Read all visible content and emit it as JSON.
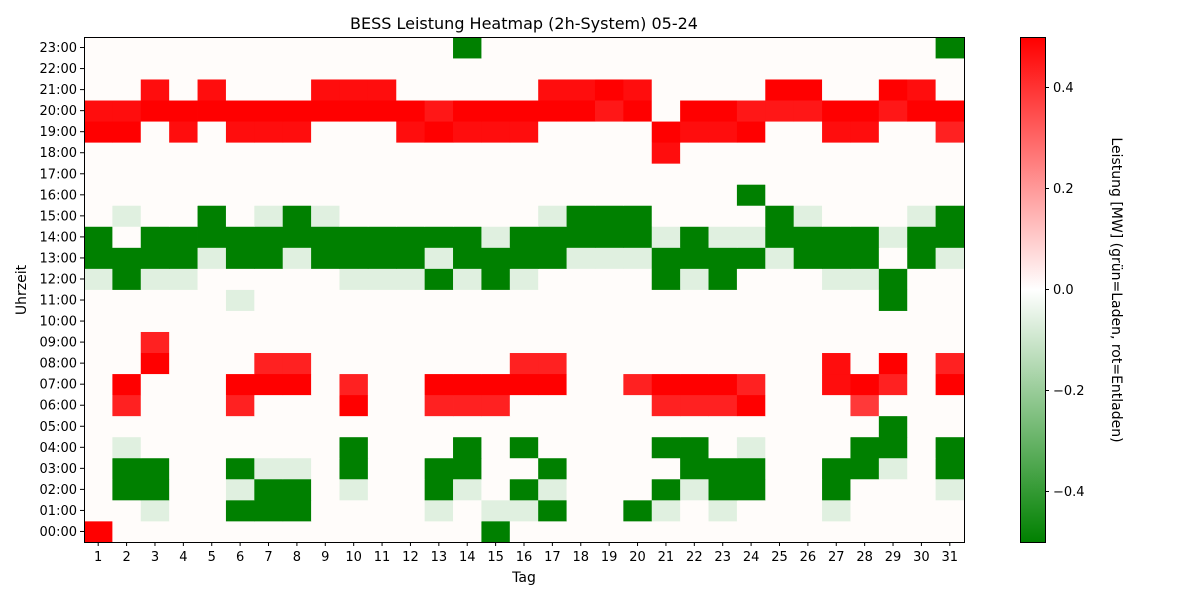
{
  "chart_data": {
    "type": "heatmap",
    "title": "BESS Leistung Heatmap (2h-System) 05-24",
    "xlabel": "Tag",
    "ylabel": "Uhrzeit",
    "colorbar_label": "Leistung [MW] (grün=Laden, rot=Entladen)",
    "colorbar_ticks": [
      "0.4",
      "0.2",
      "0.0",
      "−0.2",
      "−0.4"
    ],
    "colorbar_tick_values": [
      0.4,
      0.2,
      0.0,
      -0.2,
      -0.4
    ],
    "vmin": -0.5,
    "vmax": 0.5,
    "colors": {
      "negative": "#008000",
      "zero": "#fffcfa",
      "positive": "#ff0000"
    },
    "x": [
      "1",
      "2",
      "3",
      "4",
      "5",
      "6",
      "7",
      "8",
      "9",
      "10",
      "11",
      "12",
      "13",
      "14",
      "15",
      "16",
      "17",
      "18",
      "19",
      "20",
      "21",
      "22",
      "23",
      "24",
      "25",
      "26",
      "27",
      "28",
      "29",
      "30",
      "31"
    ],
    "y": [
      "00:00",
      "01:00",
      "02:00",
      "03:00",
      "04:00",
      "05:00",
      "06:00",
      "07:00",
      "08:00",
      "09:00",
      "10:00",
      "11:00",
      "12:00",
      "13:00",
      "14:00",
      "15:00",
      "16:00",
      "17:00",
      "18:00",
      "19:00",
      "20:00",
      "21:00",
      "22:00",
      "23:00"
    ],
    "values": [
      [
        0.45,
        0,
        0,
        0,
        0,
        0,
        0,
        0,
        0,
        0,
        0,
        0,
        0,
        0,
        -0.5,
        0,
        0,
        0,
        0,
        0,
        0,
        0,
        0,
        0,
        0,
        0,
        0,
        0,
        0,
        0,
        0
      ],
      [
        0,
        0,
        -0.05,
        0,
        0,
        -0.5,
        -0.5,
        -0.5,
        0,
        0,
        0,
        0,
        -0.05,
        0,
        -0.05,
        -0.05,
        -0.5,
        0,
        0,
        -0.5,
        -0.05,
        0,
        -0.05,
        0,
        0,
        0,
        -0.05,
        0,
        0,
        0,
        0
      ],
      [
        0,
        -0.5,
        -0.5,
        0,
        0,
        -0.05,
        -0.5,
        -0.5,
        0,
        -0.05,
        0,
        0,
        -0.5,
        -0.05,
        0,
        -0.5,
        -0.05,
        0,
        0,
        0,
        -0.5,
        -0.05,
        -0.5,
        -0.5,
        0,
        0,
        -0.5,
        0,
        0,
        0,
        -0.05
      ],
      [
        0,
        -0.5,
        -0.5,
        0,
        0,
        -0.5,
        -0.05,
        -0.05,
        0,
        -0.5,
        0,
        0,
        -0.5,
        -0.5,
        0,
        0,
        -0.5,
        0,
        0,
        0,
        0,
        -0.5,
        -0.5,
        -0.5,
        0,
        0,
        -0.5,
        -0.5,
        -0.05,
        0,
        -0.5
      ],
      [
        0,
        -0.05,
        0,
        0,
        0,
        0,
        0,
        0,
        0,
        -0.5,
        0,
        0,
        0,
        -0.5,
        0,
        -0.5,
        0,
        0,
        0,
        0,
        -0.5,
        -0.5,
        0,
        -0.05,
        0,
        0,
        0,
        -0.5,
        -0.5,
        0,
        -0.5
      ],
      [
        0,
        0,
        0,
        0,
        0,
        0,
        0,
        0,
        0,
        0,
        0,
        0,
        0,
        0,
        0,
        0,
        0,
        0,
        0,
        0,
        0,
        0,
        0,
        0,
        0,
        0,
        0,
        0,
        -0.5,
        0,
        0
      ],
      [
        0,
        0.38,
        0,
        0,
        0,
        0.38,
        0,
        0,
        0,
        0.45,
        0,
        0,
        0.38,
        0.38,
        0.38,
        0,
        0,
        0,
        0,
        0,
        0.38,
        0.38,
        0.38,
        0.45,
        0,
        0,
        0,
        0.33,
        0,
        0,
        0
      ],
      [
        0,
        0.45,
        0,
        0,
        0,
        0.45,
        0.45,
        0.45,
        0,
        0.38,
        0,
        0,
        0.45,
        0.45,
        0.45,
        0.45,
        0.45,
        0,
        0,
        0.38,
        0.45,
        0.45,
        0.45,
        0.38,
        0,
        0,
        0.42,
        0.45,
        0.38,
        0,
        0.45
      ],
      [
        0,
        0,
        0.45,
        0,
        0,
        0,
        0.38,
        0.38,
        0,
        0,
        0,
        0,
        0,
        0,
        0,
        0.38,
        0.38,
        0,
        0,
        0,
        0,
        0,
        0,
        0,
        0,
        0,
        0.42,
        0,
        0.45,
        0,
        0.38
      ],
      [
        0,
        0,
        0.38,
        0,
        0,
        0,
        0,
        0,
        0,
        0,
        0,
        0,
        0,
        0,
        0,
        0,
        0,
        0,
        0,
        0,
        0,
        0,
        0,
        0,
        0,
        0,
        0,
        0,
        0,
        0,
        0
      ],
      [
        0,
        0,
        0,
        0,
        0,
        0,
        0,
        0,
        0,
        0,
        0,
        0,
        0,
        0,
        0,
        0,
        0,
        0,
        0,
        0,
        0,
        0,
        0,
        0,
        0,
        0,
        0,
        0,
        0,
        0,
        0
      ],
      [
        0,
        0,
        0,
        0,
        0,
        -0.05,
        0,
        0,
        0,
        0,
        0,
        0,
        0,
        0,
        0,
        0,
        0,
        0,
        0,
        0,
        0,
        0,
        0,
        0,
        0,
        0,
        0,
        0,
        -0.5,
        0,
        0
      ],
      [
        -0.05,
        -0.5,
        -0.05,
        -0.05,
        0,
        0,
        0,
        0,
        0,
        -0.05,
        -0.05,
        -0.05,
        -0.5,
        -0.05,
        -0.5,
        -0.05,
        0,
        0,
        0,
        0,
        -0.5,
        -0.05,
        -0.5,
        0,
        0,
        0,
        -0.05,
        -0.05,
        -0.5,
        0,
        0
      ],
      [
        -0.5,
        -0.5,
        -0.5,
        -0.5,
        -0.05,
        -0.5,
        -0.5,
        -0.05,
        -0.5,
        -0.5,
        -0.5,
        -0.5,
        -0.05,
        -0.5,
        -0.5,
        -0.5,
        -0.5,
        -0.05,
        -0.05,
        -0.05,
        -0.5,
        -0.5,
        -0.5,
        -0.5,
        -0.05,
        -0.5,
        -0.5,
        -0.5,
        0,
        -0.5,
        -0.05
      ],
      [
        -0.5,
        0,
        -0.5,
        -0.5,
        -0.5,
        -0.5,
        -0.5,
        -0.5,
        -0.5,
        -0.5,
        -0.5,
        -0.5,
        -0.5,
        -0.5,
        -0.05,
        -0.5,
        -0.5,
        -0.5,
        -0.5,
        -0.5,
        -0.05,
        -0.5,
        -0.05,
        -0.05,
        -0.5,
        -0.5,
        -0.5,
        -0.5,
        -0.05,
        -0.5,
        -0.5
      ],
      [
        0,
        -0.05,
        0,
        0,
        -0.5,
        0,
        -0.05,
        -0.5,
        -0.05,
        0,
        0,
        0,
        0,
        0,
        0,
        0,
        -0.05,
        -0.5,
        -0.5,
        -0.5,
        0,
        0,
        0,
        0,
        -0.5,
        -0.05,
        0,
        0,
        0,
        -0.05,
        -0.5
      ],
      [
        0,
        0,
        0,
        0,
        0,
        0,
        0,
        0,
        0,
        0,
        0,
        0,
        0,
        0,
        0,
        0,
        0,
        0,
        0,
        0,
        0,
        0,
        0,
        -0.5,
        0,
        0,
        0,
        0,
        0,
        0,
        0
      ],
      [
        0,
        0,
        0,
        0,
        0,
        0,
        0,
        0,
        0,
        0,
        0,
        0,
        0,
        0,
        0,
        0,
        0,
        0,
        0,
        0,
        0,
        0,
        0,
        0,
        0,
        0,
        0,
        0,
        0,
        0,
        0
      ],
      [
        0,
        0,
        0,
        0,
        0,
        0,
        0,
        0,
        0,
        0,
        0,
        0,
        0,
        0,
        0,
        0,
        0,
        0,
        0,
        0,
        0.42,
        0,
        0,
        0,
        0,
        0,
        0,
        0,
        0,
        0,
        0
      ],
      [
        0.45,
        0.45,
        0,
        0.42,
        0,
        0.42,
        0.42,
        0.42,
        0,
        0,
        0,
        0.42,
        0.45,
        0.42,
        0.42,
        0.42,
        0,
        0,
        0,
        0,
        0.45,
        0.42,
        0.42,
        0.45,
        0,
        0,
        0.42,
        0.42,
        0,
        0,
        0.38
      ],
      [
        0.42,
        0.42,
        0.45,
        0.45,
        0.45,
        0.45,
        0.45,
        0.45,
        0.45,
        0.45,
        0.45,
        0.45,
        0.4,
        0.45,
        0.45,
        0.45,
        0.45,
        0.45,
        0.4,
        0.45,
        0,
        0.45,
        0.45,
        0.4,
        0.4,
        0.4,
        0.45,
        0.45,
        0.4,
        0.45,
        0.45
      ],
      [
        0,
        0,
        0.42,
        0,
        0.42,
        0,
        0,
        0,
        0.42,
        0.42,
        0.42,
        0,
        0,
        0,
        0,
        0,
        0.42,
        0.42,
        0.45,
        0.42,
        0,
        0,
        0,
        0,
        0.45,
        0.45,
        0,
        0,
        0.45,
        0.42,
        0
      ],
      [
        0,
        0,
        0,
        0,
        0,
        0,
        0,
        0,
        0,
        0,
        0,
        0,
        0,
        0,
        0,
        0,
        0,
        0,
        0,
        0,
        0,
        0,
        0,
        0,
        0,
        0,
        0,
        0,
        0,
        0,
        0
      ],
      [
        0,
        0,
        0,
        0,
        0,
        0,
        0,
        0,
        0,
        0,
        0,
        0,
        0,
        -0.5,
        0,
        0,
        0,
        0,
        0,
        0,
        0,
        0,
        0,
        0,
        0,
        0,
        0,
        0,
        0,
        0,
        -0.5
      ]
    ]
  }
}
